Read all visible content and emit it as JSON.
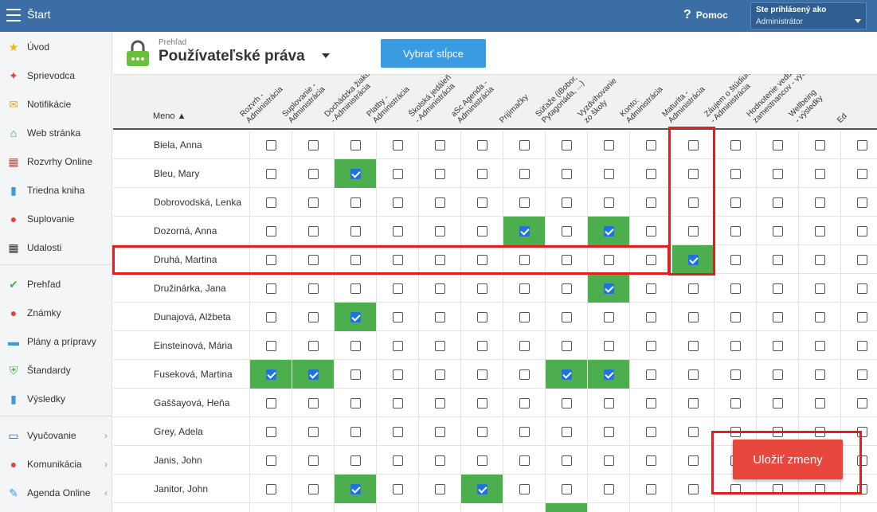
{
  "topbar": {
    "title": "Štart",
    "help": "Pomoc",
    "user_line1": "Ste prihlásený ako",
    "user_line2": "Administrátor",
    "bg": "#3a6ea5"
  },
  "sidebar": [
    {
      "label": "Úvod",
      "icon": "star-icon"
    },
    {
      "label": "Sprievodca",
      "icon": "wand-icon"
    },
    {
      "label": "Notifikácie",
      "icon": "envelope-icon"
    },
    {
      "label": "Web stránka",
      "icon": "house-icon"
    },
    {
      "label": "Rozvrhy Online",
      "icon": "calendar-grid-icon"
    },
    {
      "label": "Triedna kniha",
      "icon": "book-icon"
    },
    {
      "label": "Suplovanie",
      "icon": "person-icon"
    },
    {
      "label": "Udalosti",
      "icon": "calendar-icon"
    },
    {
      "label": "Prehľad",
      "icon": "check-circle-icon"
    },
    {
      "label": "Známky",
      "icon": "grade-icon"
    },
    {
      "label": "Plány a prípravy",
      "icon": "briefcase-icon"
    },
    {
      "label": "Štandardy",
      "icon": "shield-icon"
    },
    {
      "label": "Výsledky",
      "icon": "bar-chart-icon"
    },
    {
      "label": "Vyučovanie",
      "icon": "open-book-icon"
    },
    {
      "label": "Komunikácia",
      "icon": "chat-icon"
    },
    {
      "label": "Agenda Online",
      "icon": "pen-icon"
    }
  ],
  "header": {
    "breadcrumb": "Prehľad",
    "title": "Používateľské práva",
    "select_columns": "Vybrať stĺpce"
  },
  "grid": {
    "name_header": "Meno ▲",
    "columns": [
      "Rozvrh -\nAdministrácia",
      "Suplovanie -\nAdministrácia",
      "Dochádzka žiakov\n- Administrácia",
      "Platby -\nAdministrácia",
      "Školská jedáleň\n- Administrácia",
      "aSc Agenda -\nAdministrácia",
      "Prijímačky",
      "Súťaže (iBobor,\nPytagoriáda, ...)",
      "Vyzdvihovanie\nzo školy",
      "Konto:\nAdministrácia",
      "Maturita -\nAdministrácia",
      "Záujem o štúdium\n- Administrácia",
      "Hodnotenie vedúcich\nzamestnancov - výsledky",
      "Wellbeing\n- výsledky",
      "Ed"
    ],
    "rows": [
      {
        "name": "Biela, Anna",
        "checked": []
      },
      {
        "name": "Bleu, Mary",
        "checked": [
          2
        ]
      },
      {
        "name": "Dobrovodská, Lenka",
        "checked": []
      },
      {
        "name": "Dozorná, Anna",
        "checked": [
          6,
          8
        ]
      },
      {
        "name": "Druhá, Martina",
        "checked": [
          10
        ]
      },
      {
        "name": "Družinárka, Jana",
        "checked": [
          8
        ]
      },
      {
        "name": "Dunajová, Alžbeta",
        "checked": [
          2
        ]
      },
      {
        "name": "Einsteinová, Mária",
        "checked": []
      },
      {
        "name": "Fuseková, Martina",
        "checked": [
          0,
          1,
          7,
          8
        ]
      },
      {
        "name": "Gaššayová, Heňa",
        "checked": []
      },
      {
        "name": "Grey, Adela",
        "checked": []
      },
      {
        "name": "Janis, John",
        "checked": []
      },
      {
        "name": "Janitor, John",
        "checked": [
          2,
          5
        ]
      },
      {
        "name": "",
        "checked": [
          7
        ]
      }
    ]
  },
  "save_button": "Uložiť zmeny",
  "colors": {
    "checked_cell": "#4cae4c",
    "highlight": "#e02020",
    "save": "#e8473e",
    "primary": "#3b9be0"
  }
}
